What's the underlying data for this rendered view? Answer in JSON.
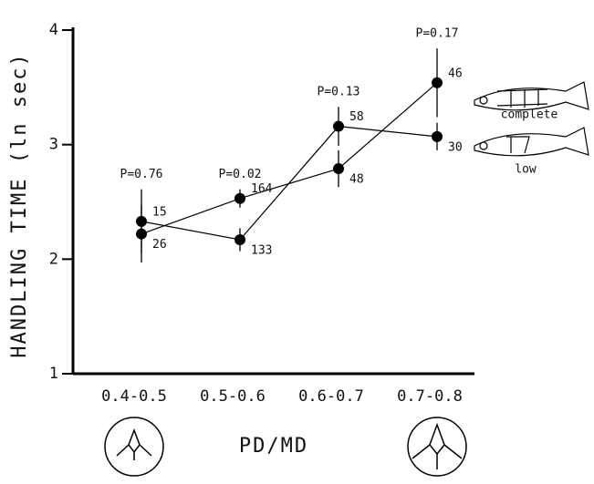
{
  "chart_data": {
    "type": "line",
    "ylabel": "HANDLING TIME (ln sec)",
    "xlabel": "PD/MD",
    "categories": [
      "0.4-0.5",
      "0.5-0.6",
      "0.6-0.7",
      "0.7-0.8"
    ],
    "annotations": [
      "P=0.76",
      "P=0.02",
      "P=0.13",
      "P=0.17"
    ],
    "series": [
      {
        "name": "low",
        "color": "#000000",
        "values": [
          2.33,
          2.17,
          3.16,
          3.07
        ],
        "errors": [
          0.28,
          0.1,
          0.17,
          0.12
        ],
        "n": [
          15,
          133,
          58,
          30
        ]
      },
      {
        "name": "complete",
        "color": "#000000",
        "values": [
          2.22,
          2.53,
          2.79,
          3.54
        ],
        "errors": [
          0.25,
          0.08,
          0.16,
          0.3
        ],
        "n": [
          26,
          164,
          48,
          46
        ]
      }
    ],
    "ylim": [
      1,
      4
    ],
    "yticks": [
      1,
      2,
      3,
      4
    ]
  }
}
